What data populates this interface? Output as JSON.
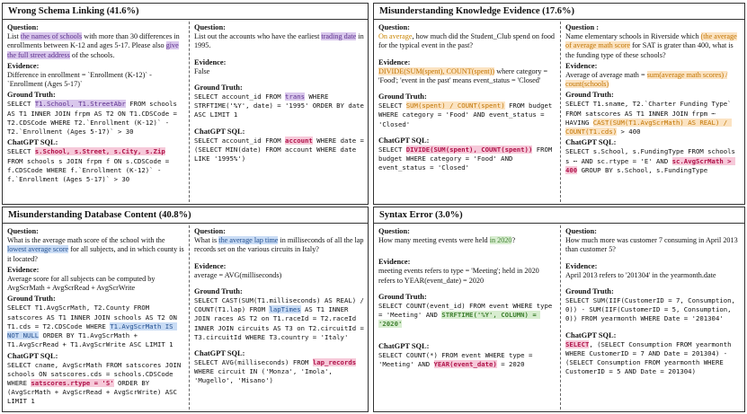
{
  "panels": {
    "p1": {
      "title": "Wrong Schema Linking (41.6%)",
      "left": {
        "q_label": "Question:",
        "q_pre": "List ",
        "q_h1": "the names of schools",
        "q_mid": " with more than 30 differences in enrollments between K-12 and ages 5-17. Please also ",
        "q_h2": "give the full street address",
        "q_post": " of the schools.",
        "ev_label": "Evidence:",
        "ev_text": "Difference in enrollment = `Enrollment (K-12)` - `Enrollment (Ages 5-17)`",
        "gt_label": "Ground Truth:",
        "gt_pre": "SELECT ",
        "gt_h": "T1.School, T1.StreetAbr",
        "gt_post": " FROM schools AS T1 INNER JOIN frpm AS T2 ON T1.CDSCode = T2.CDSCode WHERE T2.`Enrollment (K-12)` - T2.`Enrollment (Ages 5-17)` > 30",
        "gpt_label": "ChatGPT SQL:",
        "gpt_pre": "SELECT ",
        "gpt_h": "s.School, s.Street, s.City, s.Zip",
        "gpt_post": " FROM schools s JOIN frpm f ON s.CDSCode = f.CDSCode WHERE f.`Enrollment (K-12)` - f.`Enrollment (Ages 5-17)` > 30"
      },
      "right": {
        "q_label": "Question:",
        "q_pre": "List out the accounts who have the earliest ",
        "q_h": "trading date",
        "q_post": " in 1995.",
        "ev_label": "Evidence:",
        "ev_text": "False",
        "gt_label": "Ground Truth:",
        "gt_pre": "SELECT account_id FROM ",
        "gt_h": "trans",
        "gt_post": " WHERE STRFTIME('%Y', date) = '1995' ORDER BY date ASC LIMIT 1",
        "gpt_label": "ChatGPT SQL:",
        "gpt_pre": "SELECT account_id FROM ",
        "gpt_h": "account",
        "gpt_post": " WHERE date = (SELECT MIN(date) FROM account WHERE date LIKE '1995%')"
      }
    },
    "p2": {
      "title": "Misunderstanding Knowledge Evidence (17.6%)",
      "left": {
        "q_label": "Question:",
        "q_h": "On average",
        "q_post": ", how much did the Student_Club spend on food for the typical event in the past?",
        "ev_label": "Evidence:",
        "ev_h": "DIVIDE(SUM(spent), COUNT(spent))",
        "ev_post": " where category = 'Food'; 'event in the past' means event_status = 'Closed'",
        "gt_label": "Ground Truth:",
        "gt_pre": "SELECT ",
        "gt_h": "SUM(spent) / COUNT(spent)",
        "gt_post": " FROM budget WHERE category = 'Food' AND event_status = 'Closed'",
        "gpt_label": "ChatGPT SQL:",
        "gpt_pre": "SELECT ",
        "gpt_h": "DIVIDE(SUM(spent), COUNT(spent))",
        "gpt_post": " FROM budget WHERE category = 'Food' AND event_status = 'Closed'"
      },
      "right": {
        "q_label": "Question :",
        "q_pre": "Name elementary schools in Riverside which ",
        "q_h": "(the average of average math score",
        "q_post": " for SAT is grater than 400, what is the funding type of these schools?",
        "ev_label": "Evidence:",
        "ev_pre": "Average of average math = ",
        "ev_h": "sum(average math scores) / count(schools)",
        "gt_label": "Ground Truth:",
        "gt_pre": "SELECT T1.sname, T2.`Charter Funding Type` FROM satscores AS T1 INNER JOIN frpm ⋯ HAVING ",
        "gt_h": "CAST(SUM(T1.AvgScrMath) AS REAL) / COUNT(T1.cds)",
        "gt_post": " > 400",
        "gpt_label": "ChatGPT SQL:",
        "gpt_pre": "SELECT s.School, s.FundingType FROM schools s ⋯ AND sc.rtype = 'E' AND ",
        "gpt_h": "sc.AvgScrMath > 400",
        "gpt_post": " GROUP BY s.School, s.FundingType"
      }
    },
    "p3": {
      "title": "Misunderstanding Database Content (40.8%)",
      "left": {
        "q_label": "Question:",
        "q_pre": "What is the average math score of the school with the ",
        "q_h": "lowest average score",
        "q_post": " for all subjects, and in which county is it located?",
        "ev_label": "Evidence:",
        "ev_text": "Average score for all subjects can be computed by AvgScrMath + AvgScrRead + AvgScrWrite",
        "gt_label": "Ground Truth:",
        "gt_pre": "SELECT T1.AvgScrMath, T2.County FROM satscores AS T1 INNER JOIN schools AS T2 ON T1.cds = T2.CDSCode WHERE ",
        "gt_h": "T1.AvgScrMath IS NOT NULL",
        "gt_post": " ORDER BY T1.AvgScrMath + T1.AvgScrRead + T1.AvgScrWrite ASC LIMIT 1",
        "gpt_label": "ChatGPT SQL:",
        "gpt_pre": "SELECT cname, AvgScrMath FROM satscores JOIN schools ON satscores.cds = schools.CDSCode WHERE ",
        "gpt_h": "satscores.rtype = 'S'",
        "gpt_post": " ORDER BY (AvgScrMath + AvgScrRead + AvgScrWrite) ASC LIMIT 1"
      },
      "right": {
        "q_label": "Question:",
        "q_pre": "What is ",
        "q_h": "the average lap time",
        "q_post": " in milliseconds of all the lap records set on the various circuits in Italy?",
        "ev_label": "Evidence:",
        "ev_text": "average = AVG(milliseconds)",
        "gt_label": "Ground Truth:",
        "gt_pre": "SELECT CAST(SUM(T1.milliseconds) AS REAL) / COUNT(T1.lap) FROM ",
        "gt_h": "lapTimes",
        "gt_post": " AS T1 INNER JOIN races AS T2 on T1.raceId = T2.raceId INNER JOIN circuits AS T3 on T2.circuitId = T3.circuitId WHERE T3.country = 'Italy'",
        "gpt_label": "ChatGPT SQL:",
        "gpt_pre": "SELECT AVG(milliseconds) FROM ",
        "gpt_h": "lap_records",
        "gpt_post": " WHERE circuit IN ('Monza', 'Imola', 'Mugello', 'Misano')"
      }
    },
    "p4": {
      "title": "Syntax Error (3.0%)",
      "left": {
        "q_label": "Question:",
        "q_pre": "How many meeting events were held ",
        "q_h": "in 2020",
        "q_post": "?",
        "ev_label": "Evidence:",
        "ev_text": "meeting events refers to type = 'Meeting'; held in 2020 refers to YEAR(event_date) = 2020",
        "gt_label": "Ground Truth:",
        "gt_pre": "SELECT COUNT(event_id) FROM event WHERE type = 'Meeting' AND ",
        "gt_h": "STRFTIME('%Y', COLUMN) = '2020'",
        "gpt_label": "ChatGPT SQL:",
        "gpt_pre": "SELECT COUNT(*) FROM event WHERE type = 'Meeting' AND ",
        "gpt_h": "YEAR(event_date)",
        "gpt_post": " = 2020"
      },
      "right": {
        "q_label": "Question:",
        "q_text": "How much more was customer 7 consuming in April 2013 than customer 5?",
        "ev_label": "Evidence:",
        "ev_text": "April 2013 refers to '201304' in the yearmonth.date",
        "gt_label": "Ground Truth:",
        "gt_text": "SELECT SUM(IIF(CustomerID = 7, Consumption, 0)) - SUM(IIF(CustomerID = 5, Consumption, 0)) FROM yearmonth WHERE Date = '201304'",
        "gpt_label": "ChatGPT SQL:",
        "gpt_h": "SELECT",
        "gpt_post": ", (SELECT Consumption FROM yearmonth WHERE CustomerID = 7 AND Date = 201304) - (SELECT Consumption FROM yearmonth WHERE CustomerID = 5 AND Date = 201304)"
      }
    }
  }
}
